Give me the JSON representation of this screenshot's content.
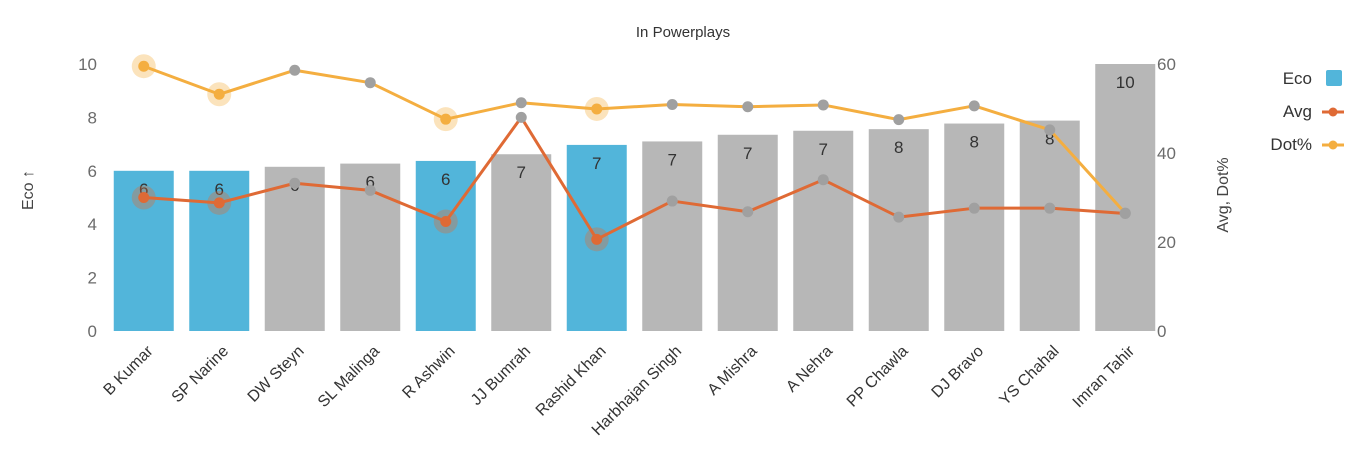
{
  "chart_data": {
    "type": "bar",
    "title": "In Powerplays",
    "categories": [
      "B Kumar",
      "SP Narine",
      "DW Steyn",
      "SL Malinga",
      "R Ashwin",
      "JJ Bumrah",
      "Rashid Khan",
      "Harbhajan Singh",
      "A Mishra",
      "A Nehra",
      "PP Chawla",
      "DJ Bravo",
      "YS Chahal",
      "Imran Tahir"
    ],
    "series": [
      {
        "name": "Eco",
        "type": "bar",
        "axis": "left",
        "values": [
          6.0,
          6.0,
          6.15,
          6.27,
          6.37,
          6.62,
          6.97,
          7.1,
          7.35,
          7.5,
          7.56,
          7.77,
          7.88,
          10.0
        ],
        "labels": [
          "6",
          "6",
          "6",
          "6",
          "6",
          "7",
          "7",
          "7",
          "7",
          "7",
          "8",
          "8",
          "8",
          "10"
        ],
        "highlighted": [
          true,
          true,
          false,
          false,
          true,
          false,
          true,
          false,
          false,
          false,
          false,
          false,
          false,
          false
        ],
        "color": "#52b5da",
        "muted_color": "#b7b7b7"
      },
      {
        "name": "Avg",
        "type": "line",
        "axis": "right",
        "values": [
          30.0,
          28.8,
          33.2,
          31.6,
          24.6,
          48.0,
          20.6,
          29.2,
          26.8,
          34.0,
          25.6,
          27.6,
          27.6,
          26.4
        ],
        "color": "#df6a35"
      },
      {
        "name": "Dot%",
        "type": "line",
        "axis": "right",
        "values": [
          59.5,
          53.2,
          58.6,
          55.8,
          47.6,
          51.3,
          49.9,
          50.9,
          50.4,
          50.8,
          47.5,
          50.6,
          45.2,
          26.5
        ],
        "color": "#f4ae40"
      }
    ],
    "left_axis": {
      "label": "Eco ↑",
      "ticks": [
        "0",
        "2",
        "4",
        "6",
        "8",
        "10"
      ],
      "range": [
        0,
        10
      ]
    },
    "right_axis": {
      "label": "Avg, Dot%",
      "ticks": [
        "0",
        "20",
        "40",
        "60"
      ],
      "range": [
        0,
        60
      ]
    },
    "point_highlight_color": "#a0a0a0",
    "legend": {
      "position": "top-right",
      "items": [
        "Eco",
        "Avg",
        "Dot%"
      ]
    }
  }
}
